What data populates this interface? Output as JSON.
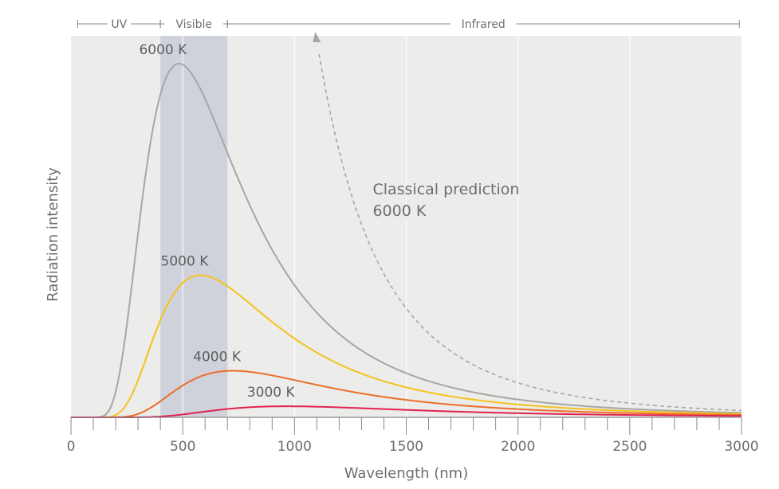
{
  "chart_data": {
    "type": "line",
    "title": "",
    "xlabel": "Wavelength  (nm)",
    "ylabel": "Radiation  intensity",
    "xlim": [
      0,
      3000
    ],
    "x_ticks": [
      0,
      500,
      1000,
      1500,
      2000,
      2500,
      3000
    ],
    "x_tick_labels": [
      "0",
      "500",
      "1000",
      "1500",
      "2000",
      "2500",
      "3000"
    ],
    "x_minor_step": 100,
    "y_ticks_shown": false,
    "grid": "vertical lines every 500 nm",
    "spectrum_bands": [
      {
        "label": "UV",
        "from": 30,
        "to": 400
      },
      {
        "label": "Visible",
        "from": 400,
        "to": 700
      },
      {
        "label": "Infrared",
        "from": 700,
        "to": 2990
      }
    ],
    "visible_band_range": [
      400,
      700
    ],
    "series": [
      {
        "name": "6000 K",
        "temperature": 6000,
        "color": "#a6a6a6",
        "dashed": false
      },
      {
        "name": "5000 K",
        "temperature": 5000,
        "color": "#f5c21b",
        "dashed": false
      },
      {
        "name": "4000 K",
        "temperature": 4000,
        "color": "#ec6e28",
        "dashed": false
      },
      {
        "name": "3000 K",
        "temperature": 3000,
        "color": "#e0224f",
        "dashed": false
      },
      {
        "name": "Classical prediction 6000 K",
        "temperature": 6000,
        "model": "rayleigh-jeans",
        "color": "#a6a6a6",
        "dashed": true
      }
    ],
    "annotation": {
      "line1": "Classical prediction",
      "line2": "6000 K"
    },
    "colors": {
      "plot_background": "#ececeb",
      "visible_band": "#cfd2db",
      "grid": "#ffffff",
      "axis": "#8a8a8a",
      "text": "#6e6e6e"
    }
  }
}
